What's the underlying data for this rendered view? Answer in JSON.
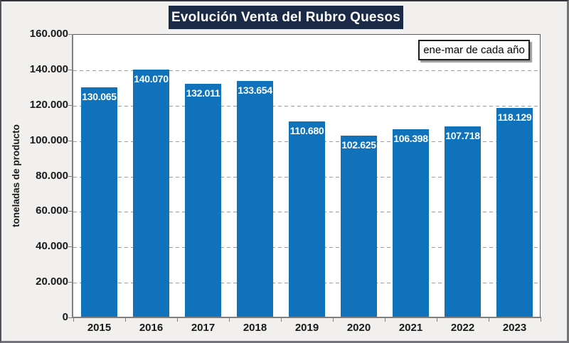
{
  "window": {
    "title": "Evolución Venta del Rubro Quesos"
  },
  "annotation": {
    "label": "ene-mar de cada año"
  },
  "chart_data": {
    "type": "bar",
    "title": "Evolución Venta del Rubro Quesos",
    "annotation": "ene-mar de cada año",
    "categories": [
      "2015",
      "2016",
      "2017",
      "2018",
      "2019",
      "2020",
      "2021",
      "2022",
      "2023"
    ],
    "values": [
      130065,
      140070,
      132011,
      133654,
      110680,
      102625,
      106398,
      107718,
      118129
    ],
    "value_labels": [
      "130.065",
      "140.070",
      "132.011",
      "133.654",
      "110.680",
      "102.625",
      "106.398",
      "107.718",
      "118.129"
    ],
    "xlabel": "",
    "ylabel": "toneladas de producto",
    "ylim": [
      0,
      160000
    ],
    "ytick_step": 20000,
    "ytick_labels": [
      "0",
      "20.000",
      "40.000",
      "60.000",
      "80.000",
      "100.000",
      "120.000",
      "140.000",
      "160.000"
    ],
    "grid": "horizontal-dashed",
    "legend_position": "top-right-inside",
    "bar_color": "#1072bb",
    "value_label_color": "#ffffff",
    "title_bg_color": "#1b2a47",
    "title_text_color": "#ffffff",
    "plot_bg_color": "#ffffff",
    "page_bg_color": "#f1f0ee",
    "gridline_color": "#9a9a9a",
    "axis_color": "#7f7f7f"
  }
}
